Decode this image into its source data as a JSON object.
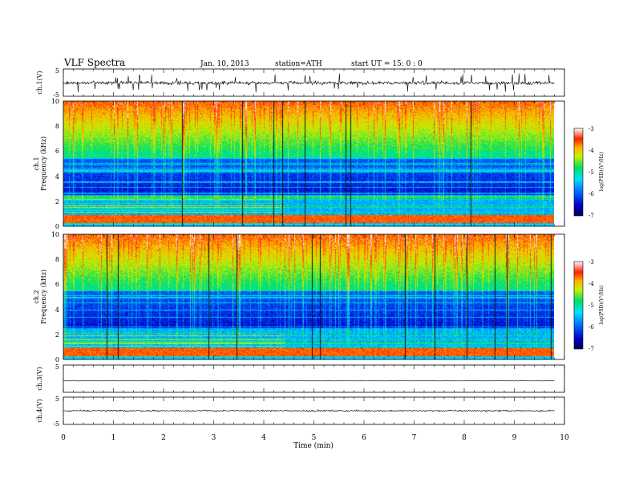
{
  "header": {
    "title": "VLF Spectra",
    "date": "Jan. 10, 2013",
    "station": "station=ATH",
    "start": "start UT = 15: 0 : 0"
  },
  "chart_data": [
    {
      "type": "line",
      "panel": "ch1",
      "ylabel": "ch.1(V)",
      "ylim": [
        -5,
        5
      ],
      "yticks": [
        "5",
        "-5"
      ],
      "xlim": [
        0,
        10
      ],
      "baseline": -0.1,
      "noise_amplitude": 0.6,
      "spike_amplitude": 3.5
    },
    {
      "type": "heatmap",
      "panel": "spec1",
      "ylabel": "Frequency (kHz)",
      "channel_label": "ch.1",
      "ylim": [
        0,
        10
      ],
      "yticks": [
        "0",
        "2",
        "4",
        "6",
        "8",
        "10"
      ],
      "xlim": [
        0,
        9.8
      ],
      "colorbar": {
        "label": "log(PSD)(V²/Hz)",
        "ticks": [
          "-3",
          "-4",
          "-5",
          "-6",
          "-7"
        ],
        "range": [
          -7,
          -3
        ]
      }
    },
    {
      "type": "heatmap",
      "panel": "spec2",
      "ylabel": "Frequency (kHz)",
      "channel_label": "ch.2",
      "ylim": [
        0,
        10
      ],
      "yticks": [
        "0",
        "2",
        "4",
        "6",
        "8",
        "10"
      ],
      "xlim": [
        0,
        9.8
      ],
      "colorbar": {
        "label": "log(PSD)(V²/Hz)",
        "ticks": [
          "-3",
          "-4",
          "-5",
          "-6",
          "-7"
        ],
        "range": [
          -7,
          -3
        ]
      }
    },
    {
      "type": "line",
      "panel": "ch3",
      "ylabel": "ch.3(V)",
      "ylim": [
        -5,
        5
      ],
      "yticks": [
        "5"
      ],
      "xlim": [
        0,
        10
      ],
      "baseline": -0.8,
      "noise_amplitude": 0.05
    },
    {
      "type": "line",
      "panel": "ch4",
      "ylabel": "ch.4(V)",
      "ylim": [
        -5,
        5
      ],
      "yticks": [
        "5",
        "-5"
      ],
      "xlim": [
        0,
        10
      ],
      "baseline": 0,
      "noise_amplitude": 0.25
    }
  ],
  "xaxis": {
    "label": "Time (min)",
    "ticks": [
      "0",
      "1",
      "2",
      "3",
      "4",
      "5",
      "6",
      "7",
      "8",
      "9",
      "10"
    ]
  }
}
